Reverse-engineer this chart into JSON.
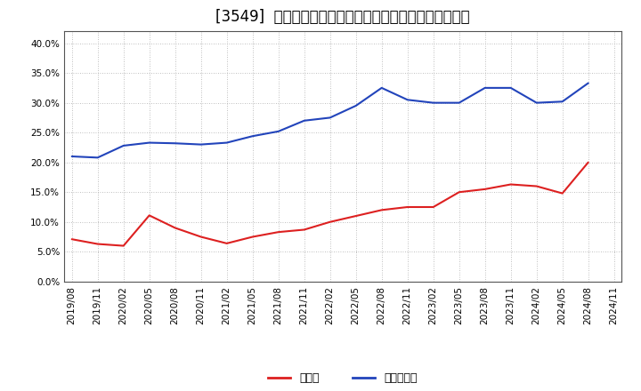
{
  "title": "[3549]  現預金、有利子負債の総資産に対する比率の推移",
  "x_labels": [
    "2019/08",
    "2019/11",
    "2020/02",
    "2020/05",
    "2020/08",
    "2020/11",
    "2021/02",
    "2021/05",
    "2021/08",
    "2021/11",
    "2022/02",
    "2022/05",
    "2022/08",
    "2022/11",
    "2023/02",
    "2023/05",
    "2023/08",
    "2023/11",
    "2024/02",
    "2024/05",
    "2024/08",
    "2024/11"
  ],
  "cash": [
    0.071,
    0.063,
    0.06,
    0.111,
    0.09,
    0.075,
    0.064,
    0.075,
    0.083,
    0.087,
    0.1,
    0.11,
    0.12,
    0.125,
    0.125,
    0.15,
    0.155,
    0.163,
    0.16,
    0.148,
    0.2,
    null
  ],
  "debt": [
    0.21,
    0.208,
    0.228,
    0.233,
    0.232,
    0.23,
    0.233,
    0.244,
    0.252,
    0.27,
    0.275,
    0.295,
    0.325,
    0.305,
    0.3,
    0.3,
    0.325,
    0.325,
    0.3,
    0.302,
    0.333,
    null
  ],
  "cash_color": "#dd2020",
  "debt_color": "#2244bb",
  "background_color": "#ffffff",
  "plot_background": "#ffffff",
  "ylim": [
    0.0,
    0.42
  ],
  "yticks": [
    0.0,
    0.05,
    0.1,
    0.15,
    0.2,
    0.25,
    0.3,
    0.35,
    0.4
  ],
  "legend_cash": "現預金",
  "legend_debt": "有利子負債",
  "title_fontsize": 12,
  "axis_fontsize": 7.5,
  "legend_fontsize": 9
}
